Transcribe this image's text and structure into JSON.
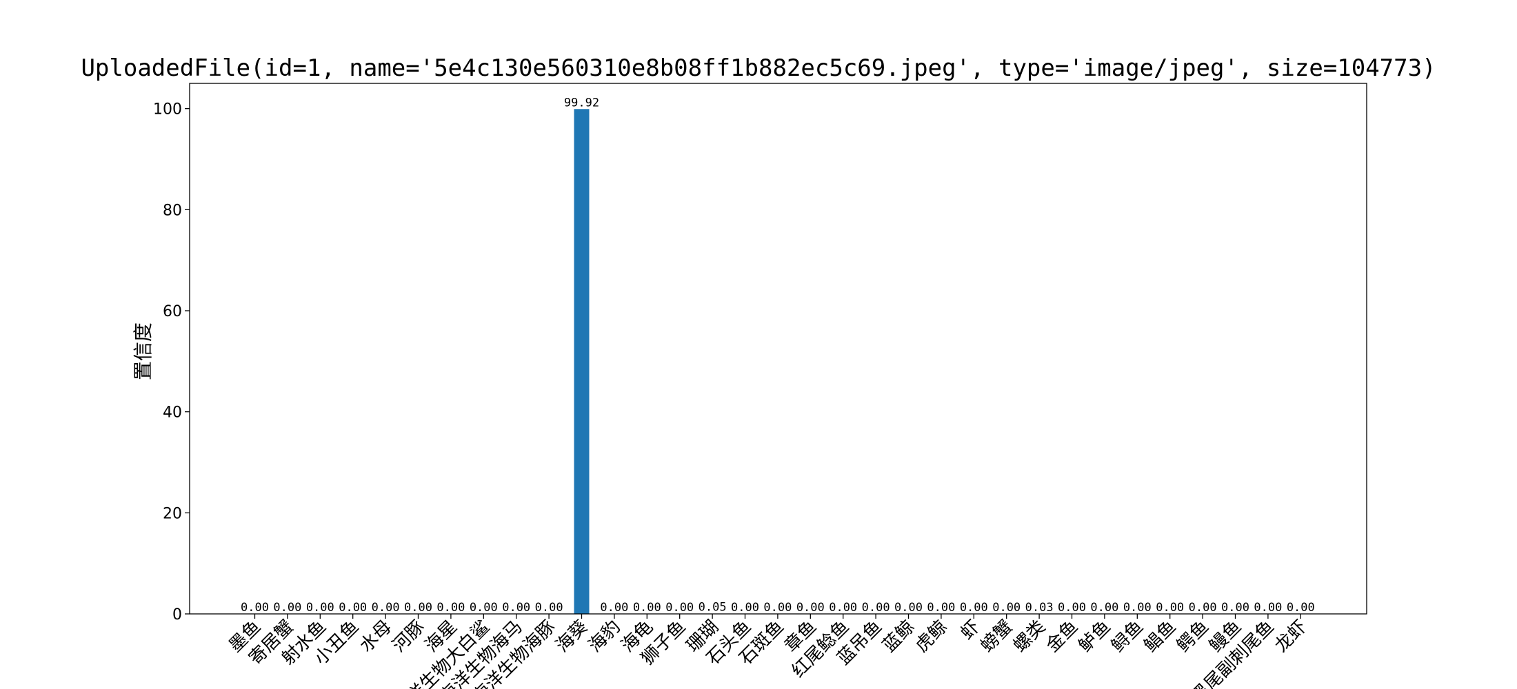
{
  "chart_data": {
    "type": "bar",
    "title": "UploadedFile(id=1, name='5e4c130e560310e8b08ff1b882ec5c69.jpeg', type='image/jpeg', size=104773)",
    "xlabel": "",
    "ylabel": "置信度",
    "ylim": [
      0,
      105
    ],
    "yticks": [
      0,
      20,
      40,
      60,
      80,
      100
    ],
    "grid": false,
    "bar_color": "#1f77b4",
    "categories": [
      "墨鱼",
      "寄居蟹",
      "射水鱼",
      "小丑鱼",
      "水母",
      "河豚",
      "海星",
      "海洋生物大白鲨",
      "海洋生物海马",
      "海洋生物海豚",
      "海葵",
      "海豹",
      "海龟",
      "狮子鱼",
      "珊瑚",
      "石头鱼",
      "石斑鱼",
      "章鱼",
      "红尾鲶鱼",
      "蓝吊鱼",
      "蓝鲸",
      "虎鲸",
      "虾",
      "螃蟹",
      "螺类",
      "金鱼",
      "鲈鱼",
      "鲟鱼",
      "鲳鱼",
      "鳄鱼",
      "鳗鱼",
      "黑尾副刺尾鱼",
      "龙虾"
    ],
    "values": [
      0.0,
      0.0,
      0.0,
      0.0,
      0.0,
      0.0,
      0.0,
      0.0,
      0.0,
      0.0,
      99.92,
      0.0,
      0.0,
      0.0,
      0.05,
      0.0,
      0.0,
      0.0,
      0.0,
      0.0,
      0.0,
      0.0,
      0.0,
      0.0,
      0.03,
      0.0,
      0.0,
      0.0,
      0.0,
      0.0,
      0.0,
      0.0,
      0.0
    ],
    "data_labels": [
      "0.00",
      "0.00",
      "0.00",
      "0.00",
      "0.00",
      "0.00",
      "0.00",
      "0.00",
      "0.00",
      "0.00",
      "99.92",
      "0.00",
      "0.00",
      "0.00",
      "0.05",
      "0.00",
      "0.00",
      "0.00",
      "0.00",
      "0.00",
      "0.00",
      "0.00",
      "0.00",
      "0.00",
      "0.03",
      "0.00",
      "0.00",
      "0.00",
      "0.00",
      "0.00",
      "0.00",
      "0.00",
      "0.00"
    ]
  }
}
